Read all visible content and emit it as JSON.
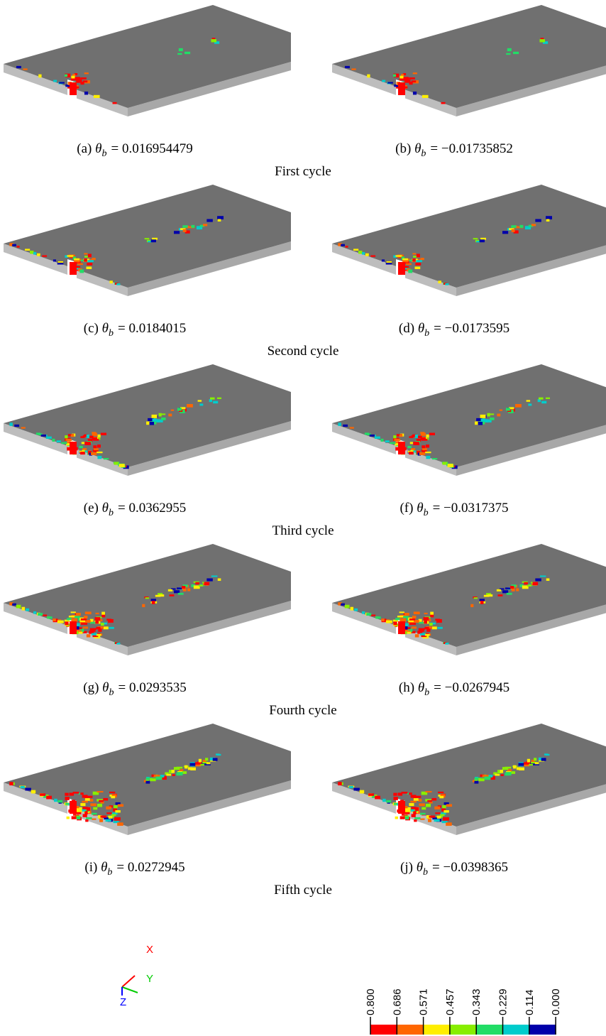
{
  "panels": [
    {
      "label": "(a)",
      "var": "θ",
      "sub": "b",
      "eq": "= 0.016954479"
    },
    {
      "label": "(b)",
      "var": "θ",
      "sub": "b",
      "eq": "= −0.01735852"
    },
    {
      "label": "(c)",
      "var": "θ",
      "sub": "b",
      "eq": "= 0.0184015"
    },
    {
      "label": "(d)",
      "var": "θ",
      "sub": "b",
      "eq": "= −0.0173595"
    },
    {
      "label": "(e)",
      "var": "θ",
      "sub": "b",
      "eq": "= 0.0362955"
    },
    {
      "label": "(f)",
      "var": "θ",
      "sub": "b",
      "eq": "= −0.0317375"
    },
    {
      "label": "(g)",
      "var": "θ",
      "sub": "b",
      "eq": "= 0.0293535"
    },
    {
      "label": "(h)",
      "var": "θ",
      "sub": "b",
      "eq": "= −0.0267945"
    },
    {
      "label": "(i)",
      "var": "θ",
      "sub": "b",
      "eq": "= 0.0272945"
    },
    {
      "label": "(j)",
      "var": "θ",
      "sub": "b",
      "eq": "= −0.0398365"
    }
  ],
  "cycles": [
    "First cycle",
    "Second cycle",
    "Third cycle",
    "Fourth cycle",
    "Fifth cycle"
  ],
  "axes": {
    "x": "X",
    "y": "Y",
    "z": "Z"
  },
  "legend": [
    "0.800",
    "0.686",
    "0.571",
    "0.457",
    "0.343",
    "0.229",
    "0.114",
    "0.000"
  ]
}
